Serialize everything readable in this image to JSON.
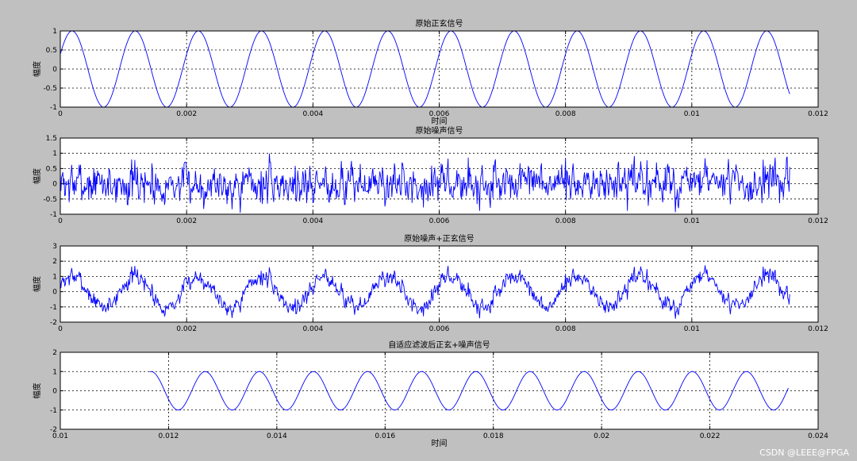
{
  "colors": {
    "background": "#c0c0c0",
    "axes_bg": "#ffffff",
    "series": "#0000ff"
  },
  "watermark": "CSDN @LEEE@FPGA",
  "chart_data": [
    {
      "type": "line",
      "title": "原始正玄信号",
      "xlabel": "时间",
      "ylabel": "幅度",
      "xlim": [
        0,
        0.012
      ],
      "ylim": [
        -1,
        1
      ],
      "xticks": [
        0,
        0.002,
        0.004,
        0.006,
        0.008,
        0.01,
        0.012
      ],
      "xticklabels": [
        "0",
        "0.002",
        "0.004",
        "0.006",
        "0.008",
        "0.01",
        "0.012"
      ],
      "yticks": [
        -1,
        -0.5,
        0,
        0.5,
        1
      ],
      "yticklabels": [
        "-1",
        "-0.5",
        "0",
        "0.5",
        "1"
      ],
      "grid": true,
      "series": [
        {
          "kind": "sine",
          "frequency_hz": 1000,
          "amplitude": 1,
          "phase_rad": 0.4,
          "x_start": 0,
          "x_end": 0.01155
        }
      ]
    },
    {
      "type": "line",
      "title": "原始噪声信号",
      "xlabel": "",
      "ylabel": "幅度",
      "xlim": [
        0,
        0.012
      ],
      "ylim": [
        -1,
        1.5
      ],
      "xticks": [
        0,
        0.002,
        0.004,
        0.006,
        0.008,
        0.01,
        0.012
      ],
      "xticklabels": [
        "0",
        "0.002",
        "0.004",
        "0.006",
        "0.008",
        "0.01",
        "0.012"
      ],
      "yticks": [
        -1,
        -0.5,
        0,
        0.5,
        1,
        1.5
      ],
      "yticklabels": [
        "-1",
        "-0.5",
        "0",
        "0.5",
        "1",
        "1.5"
      ],
      "grid": true,
      "series": [
        {
          "kind": "noise",
          "amplitude": 0.45,
          "max": 1.15,
          "min": -0.95,
          "x_start": 0,
          "x_end": 0.01155,
          "seed": 7
        }
      ]
    },
    {
      "type": "line",
      "title": "原始噪声+正玄信号",
      "xlabel": "",
      "ylabel": "幅度",
      "xlim": [
        0,
        0.012
      ],
      "ylim": [
        -2,
        3
      ],
      "xticks": [
        0,
        0.002,
        0.004,
        0.006,
        0.008,
        0.01,
        0.012
      ],
      "xticklabels": [
        "0",
        "0.002",
        "0.004",
        "0.006",
        "0.008",
        "0.01",
        "0.012"
      ],
      "yticks": [
        -2,
        -1,
        0,
        1,
        2,
        3
      ],
      "yticklabels": [
        "-2",
        "-1",
        "0",
        "1",
        "2",
        "3"
      ],
      "grid": true,
      "series": [
        {
          "kind": "sine+noise",
          "frequency_hz": 1000,
          "amplitude": 1,
          "phase_rad": 0.4,
          "noise_amplitude": 0.4,
          "x_start": 0,
          "x_end": 0.01155,
          "seed": 7
        }
      ]
    },
    {
      "type": "line",
      "title": "自适应滤波后正玄+噪声信号",
      "xlabel": "时间",
      "ylabel": "幅度",
      "xlim": [
        0.01,
        0.024
      ],
      "ylim": [
        -2,
        2
      ],
      "xticks": [
        0.01,
        0.012,
        0.014,
        0.016,
        0.018,
        0.02,
        0.022,
        0.024
      ],
      "xticklabels": [
        "0.01",
        "0.012",
        "0.014",
        "0.016",
        "0.018",
        "0.02",
        "0.022",
        "0.024"
      ],
      "yticks": [
        -2,
        -1,
        0,
        1,
        2
      ],
      "yticklabels": [
        "-2",
        "-1",
        "0",
        "1",
        "2"
      ],
      "grid": true,
      "series": [
        {
          "kind": "sine",
          "frequency_hz": 1000,
          "amplitude": 1,
          "phase_rad": 3.6,
          "x_start": 0.01165,
          "x_end": 0.02345
        }
      ]
    }
  ]
}
